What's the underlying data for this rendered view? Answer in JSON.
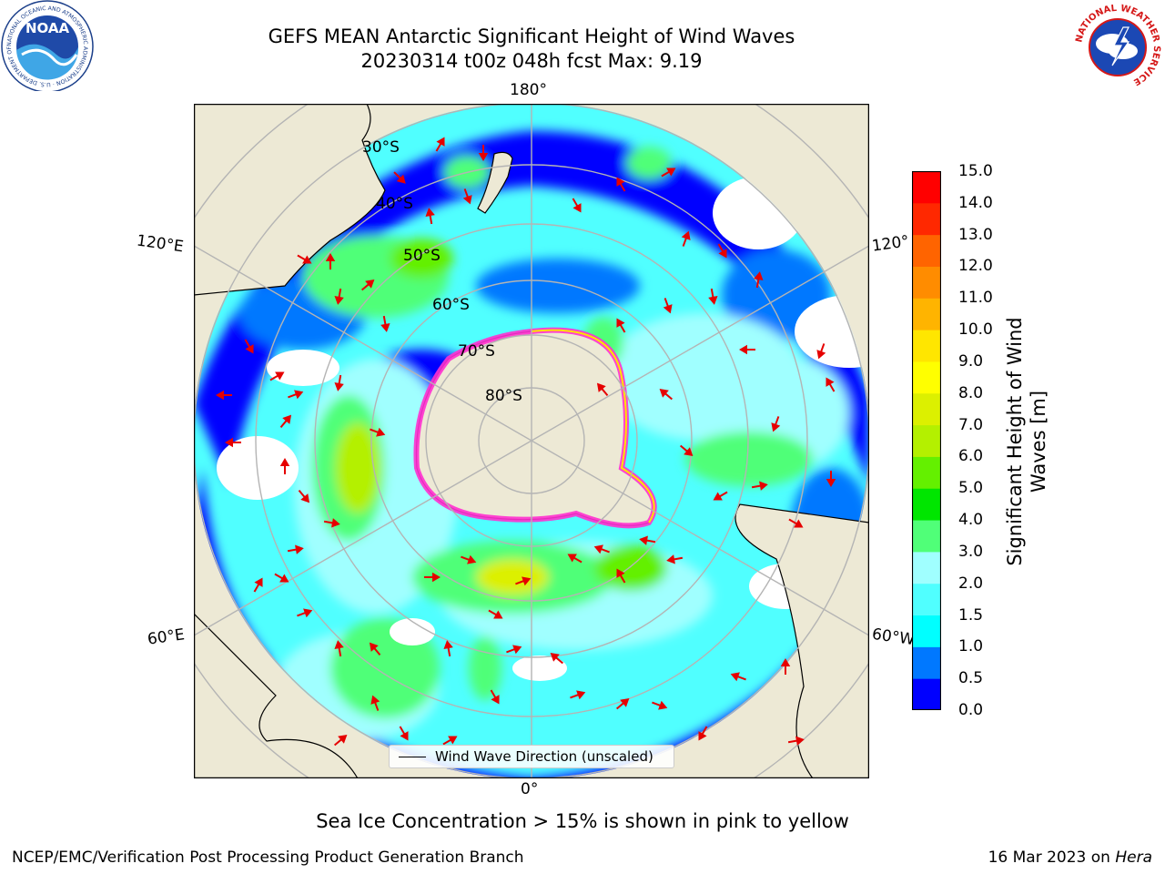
{
  "header": {
    "title_line1": "GEFS MEAN Antarctic Significant Height of Wind Waves",
    "title_line2": "20230314 t00z 048h fcst   Max: 9.19"
  },
  "logos": {
    "left": {
      "icon": "noaa-logo",
      "text": "NOAA",
      "ring_text": "NATIONAL OCEANIC AND ATMOSPHERIC ADMINISTRATION · U.S. DEPARTMENT OF COMMERCE"
    },
    "right": {
      "icon": "nws-logo",
      "ring_text": "NATIONAL WEATHER SERVICE"
    }
  },
  "map": {
    "projection": "south-polar-stereographic",
    "longitude_labels": {
      "top": "180°",
      "bottom": "0°",
      "left_upper": "120°E",
      "left_lower": "60°E",
      "right_upper": "120°",
      "right_lower": "60°W"
    },
    "latitude_labels": [
      "30°S",
      "40°S",
      "50°S",
      "60°S",
      "70°S",
      "80°S"
    ],
    "colors": {
      "land": "#ede9d5",
      "ocean_blank": "#ffffff",
      "grid": "#b4b4b4",
      "arrow": "#e60000",
      "sea_ice_low": "#ff30d0",
      "sea_ice_high": "#ffe000"
    }
  },
  "colorbar": {
    "label": "Significant Height of Wind Waves [m]",
    "ticks": [
      "0.0",
      "0.5",
      "1.0",
      "1.5",
      "2.0",
      "3.0",
      "4.0",
      "5.0",
      "6.0",
      "7.0",
      "8.0",
      "9.0",
      "10.0",
      "11.0",
      "12.0",
      "13.0",
      "14.0",
      "15.0"
    ],
    "colors": [
      "#0000ff",
      "#0078ff",
      "#00ffff",
      "#50ffff",
      "#a0ffff",
      "#50ff78",
      "#00e600",
      "#64f000",
      "#b4f000",
      "#dcf000",
      "#ffff00",
      "#ffe600",
      "#ffb400",
      "#ff8c00",
      "#ff6400",
      "#ff2800",
      "#ff0000"
    ]
  },
  "legend": {
    "label": "Wind Wave Direction (unscaled)"
  },
  "note": "Sea Ice Concentration > 15% is shown in pink to yellow",
  "footer": {
    "left": "NCEP/EMC/Verification Post Processing Product Generation Branch",
    "date": "16 Mar 2023 on ",
    "host": "Hera"
  }
}
